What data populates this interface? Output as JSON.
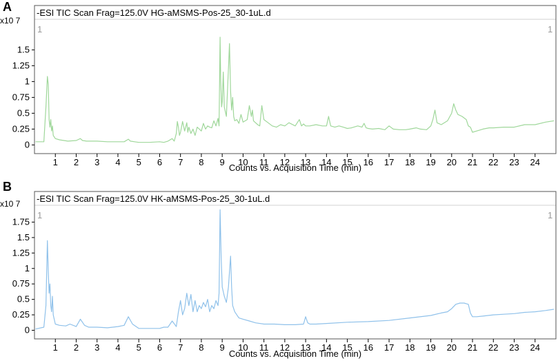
{
  "chart_data": [
    {
      "type": "line",
      "panel_label": "A",
      "title": "-ESI TIC Scan Frag=125.0V HG-aMSMS-Pos-25_30-1uL.d",
      "scale_label": "x10 7",
      "corner_left": "1",
      "corner_right": "1",
      "xlabel": "Counts vs. Acquisition Time (min)",
      "ylabel": "",
      "xlim": [
        0,
        25
      ],
      "ylim": [
        -0.05,
        1.95
      ],
      "x_ticks": [
        "1",
        "2",
        "3",
        "4",
        "5",
        "6",
        "7",
        "8",
        "9",
        "10",
        "11",
        "12",
        "13",
        "14",
        "15",
        "16",
        "17",
        "18",
        "19",
        "20",
        "21",
        "22",
        "23",
        "24"
      ],
      "y_ticks": [
        "0",
        "0.25",
        "0.5",
        "0.75",
        "1",
        "1.25",
        "1.5"
      ],
      "y_tick_values": [
        0,
        0.25,
        0.5,
        0.75,
        1,
        1.25,
        1.5
      ],
      "line_color": "#9fd79a",
      "series": [
        {
          "x": [
            0.05,
            0.45,
            0.55,
            0.62,
            0.66,
            0.7,
            0.74,
            0.78,
            0.82,
            0.86,
            0.9,
            1.0,
            1.2,
            1.6,
            2.0,
            2.2,
            2.3,
            2.5,
            3.0,
            3.5,
            4.0,
            4.3,
            4.5,
            4.6,
            4.8,
            5.0,
            5.5,
            6.0,
            6.2,
            6.4,
            6.6,
            6.7,
            6.8,
            6.85,
            6.9,
            6.95,
            7.0,
            7.1,
            7.2,
            7.3,
            7.35,
            7.4,
            7.5,
            7.6,
            7.7,
            7.8,
            8.0,
            8.1,
            8.2,
            8.3,
            8.4,
            8.5,
            8.6,
            8.7,
            8.8,
            8.85,
            8.9,
            8.93,
            8.97,
            9.0,
            9.05,
            9.1,
            9.2,
            9.3,
            9.35,
            9.4,
            9.45,
            9.5,
            9.55,
            9.6,
            9.7,
            9.8,
            9.9,
            10.0,
            10.2,
            10.3,
            10.4,
            10.45,
            10.5,
            10.6,
            10.7,
            10.8,
            10.9,
            11.0,
            11.2,
            11.4,
            11.6,
            11.8,
            12.0,
            12.2,
            12.5,
            12.7,
            12.8,
            12.9,
            13.0,
            13.2,
            13.5,
            13.8,
            14.0,
            14.1,
            14.2,
            14.4,
            14.6,
            14.8,
            15.0,
            15.2,
            15.5,
            15.7,
            15.8,
            15.9,
            16.0,
            16.2,
            16.5,
            16.8,
            17.0,
            17.2,
            17.5,
            17.8,
            18.0,
            18.3,
            18.5,
            18.8,
            19.0,
            19.1,
            19.2,
            19.3,
            19.5,
            19.8,
            20.0,
            20.1,
            20.2,
            20.3,
            20.5,
            20.7,
            20.8,
            20.9,
            21.0,
            21.2,
            21.5,
            21.8,
            22.0,
            22.5,
            23.0,
            23.5,
            24.0,
            24.5,
            24.9
          ],
          "y": [
            0.05,
            0.05,
            0.6,
            1.08,
            0.95,
            0.4,
            0.28,
            0.4,
            0.22,
            0.3,
            0.15,
            0.1,
            0.08,
            0.06,
            0.07,
            0.1,
            0.07,
            0.06,
            0.06,
            0.05,
            0.05,
            0.05,
            0.09,
            0.06,
            0.05,
            0.04,
            0.04,
            0.05,
            0.04,
            0.06,
            0.1,
            0.06,
            0.18,
            0.37,
            0.28,
            0.15,
            0.2,
            0.37,
            0.22,
            0.35,
            0.2,
            0.28,
            0.18,
            0.25,
            0.15,
            0.28,
            0.22,
            0.34,
            0.25,
            0.3,
            0.28,
            0.27,
            0.38,
            0.3,
            0.42,
            0.3,
            1.7,
            1.0,
            0.6,
            0.68,
            1.15,
            0.6,
            0.45,
            1.2,
            1.6,
            0.85,
            0.55,
            0.75,
            0.45,
            0.38,
            0.4,
            0.34,
            0.48,
            0.36,
            0.4,
            0.62,
            0.45,
            0.55,
            0.38,
            0.35,
            0.32,
            0.3,
            0.62,
            0.4,
            0.35,
            0.3,
            0.28,
            0.32,
            0.3,
            0.35,
            0.3,
            0.4,
            0.3,
            0.33,
            0.3,
            0.3,
            0.32,
            0.3,
            0.3,
            0.45,
            0.3,
            0.28,
            0.3,
            0.28,
            0.26,
            0.27,
            0.3,
            0.28,
            0.34,
            0.27,
            0.26,
            0.25,
            0.26,
            0.24,
            0.3,
            0.25,
            0.24,
            0.24,
            0.25,
            0.27,
            0.25,
            0.24,
            0.3,
            0.4,
            0.55,
            0.35,
            0.32,
            0.38,
            0.5,
            0.65,
            0.55,
            0.48,
            0.45,
            0.4,
            0.3,
            0.28,
            0.2,
            0.22,
            0.25,
            0.27,
            0.27,
            0.28,
            0.28,
            0.32,
            0.32,
            0.36,
            0.38
          ]
        }
      ]
    },
    {
      "type": "line",
      "panel_label": "B",
      "title": "-ESI TIC Scan Frag=125.0V HK-aMSMS-Pos-25_30-1uL.d",
      "scale_label": "x10 7",
      "corner_left": "1",
      "corner_right": "1",
      "xlabel": "Counts vs. Acquisition Time (min)",
      "ylabel": "",
      "xlim": [
        0,
        25
      ],
      "ylim": [
        -0.05,
        2.0
      ],
      "x_ticks": [
        "1",
        "2",
        "3",
        "4",
        "5",
        "6",
        "7",
        "8",
        "9",
        "10",
        "11",
        "12",
        "13",
        "14",
        "15",
        "16",
        "17",
        "18",
        "19",
        "20",
        "21",
        "22",
        "23",
        "24"
      ],
      "y_ticks": [
        "0",
        "0.25",
        "0.5",
        "0.75",
        "1",
        "1.25",
        "1.5",
        "1.75"
      ],
      "y_tick_values": [
        0,
        0.25,
        0.5,
        0.75,
        1,
        1.25,
        1.5,
        1.75
      ],
      "line_color": "#8fc1ea",
      "series": [
        {
          "x": [
            0.05,
            0.45,
            0.55,
            0.62,
            0.66,
            0.7,
            0.74,
            0.78,
            0.82,
            0.86,
            0.9,
            1.0,
            1.2,
            1.5,
            1.7,
            2.0,
            2.2,
            2.4,
            2.6,
            3.0,
            3.5,
            4.0,
            4.3,
            4.5,
            4.7,
            5.0,
            5.5,
            6.0,
            6.2,
            6.4,
            6.5,
            6.6,
            6.8,
            6.9,
            7.0,
            7.1,
            7.2,
            7.3,
            7.4,
            7.5,
            7.6,
            7.7,
            7.8,
            7.9,
            8.0,
            8.1,
            8.2,
            8.3,
            8.4,
            8.5,
            8.6,
            8.7,
            8.8,
            8.85,
            8.9,
            8.95,
            9.0,
            9.1,
            9.2,
            9.3,
            9.4,
            9.45,
            9.5,
            9.6,
            9.7,
            9.8,
            10.0,
            10.3,
            10.6,
            11.0,
            11.5,
            12.0,
            12.5,
            12.9,
            13.0,
            13.1,
            13.2,
            13.5,
            14.0,
            15.0,
            16.0,
            17.0,
            18.0,
            19.0,
            19.5,
            19.8,
            20.0,
            20.2,
            20.4,
            20.6,
            20.7,
            20.8,
            20.9,
            21.0,
            21.2,
            21.5,
            22.0,
            22.5,
            23.0,
            23.5,
            24.0,
            24.5,
            24.9
          ],
          "y": [
            0.02,
            0.05,
            0.4,
            1.45,
            0.95,
            0.6,
            0.75,
            0.4,
            0.3,
            0.55,
            0.25,
            0.1,
            0.08,
            0.07,
            0.1,
            0.06,
            0.18,
            0.08,
            0.05,
            0.05,
            0.04,
            0.06,
            0.08,
            0.22,
            0.1,
            0.03,
            0.03,
            0.03,
            0.05,
            0.05,
            0.1,
            0.15,
            0.06,
            0.3,
            0.48,
            0.25,
            0.35,
            0.6,
            0.4,
            0.58,
            0.3,
            0.48,
            0.3,
            0.4,
            0.35,
            0.45,
            0.38,
            0.5,
            0.3,
            0.4,
            0.35,
            0.48,
            0.4,
            0.6,
            1.95,
            1.2,
            0.7,
            0.55,
            0.45,
            0.7,
            1.2,
            0.7,
            0.4,
            0.3,
            0.25,
            0.2,
            0.18,
            0.15,
            0.12,
            0.1,
            0.1,
            0.09,
            0.09,
            0.1,
            0.22,
            0.12,
            0.1,
            0.1,
            0.11,
            0.13,
            0.14,
            0.16,
            0.2,
            0.24,
            0.28,
            0.3,
            0.35,
            0.42,
            0.44,
            0.44,
            0.43,
            0.42,
            0.28,
            0.22,
            0.22,
            0.23,
            0.25,
            0.26,
            0.27,
            0.29,
            0.3,
            0.32,
            0.34
          ]
        }
      ]
    }
  ]
}
